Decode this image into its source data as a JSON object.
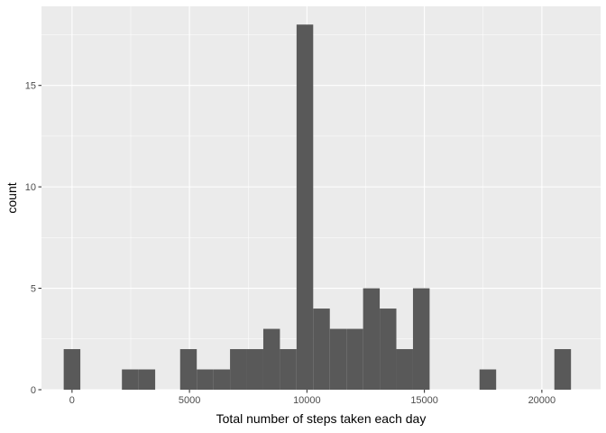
{
  "chart_data": {
    "type": "bar",
    "xlabel": "Total number of steps taken each day",
    "ylabel": "count",
    "bar_color": "#595959",
    "panel_color": "#EBEBEB",
    "grid": true,
    "binwidth": 708,
    "xlim": [
      -1300,
      22500
    ],
    "ylim": [
      0,
      18.9
    ],
    "x_ticks": [
      0,
      5000,
      10000,
      15000,
      20000
    ],
    "x_tick_labels": [
      "0",
      "5000",
      "10000",
      "15000",
      "20000"
    ],
    "y_ticks": [
      0,
      5,
      10,
      15
    ],
    "y_tick_labels": [
      "0",
      "5",
      "10",
      "15"
    ],
    "bins": [
      {
        "x": 0,
        "count": 2
      },
      {
        "x": 2478,
        "count": 1
      },
      {
        "x": 3186,
        "count": 1
      },
      {
        "x": 4956,
        "count": 2
      },
      {
        "x": 5664,
        "count": 1
      },
      {
        "x": 6372,
        "count": 1
      },
      {
        "x": 7080,
        "count": 2
      },
      {
        "x": 7788,
        "count": 2
      },
      {
        "x": 8496,
        "count": 3
      },
      {
        "x": 9204,
        "count": 2
      },
      {
        "x": 9912,
        "count": 18
      },
      {
        "x": 10620,
        "count": 4
      },
      {
        "x": 11328,
        "count": 3
      },
      {
        "x": 12036,
        "count": 3
      },
      {
        "x": 12744,
        "count": 5
      },
      {
        "x": 13452,
        "count": 4
      },
      {
        "x": 14160,
        "count": 2
      },
      {
        "x": 14868,
        "count": 5
      },
      {
        "x": 17700,
        "count": 1
      },
      {
        "x": 20886,
        "count": 2
      }
    ]
  }
}
